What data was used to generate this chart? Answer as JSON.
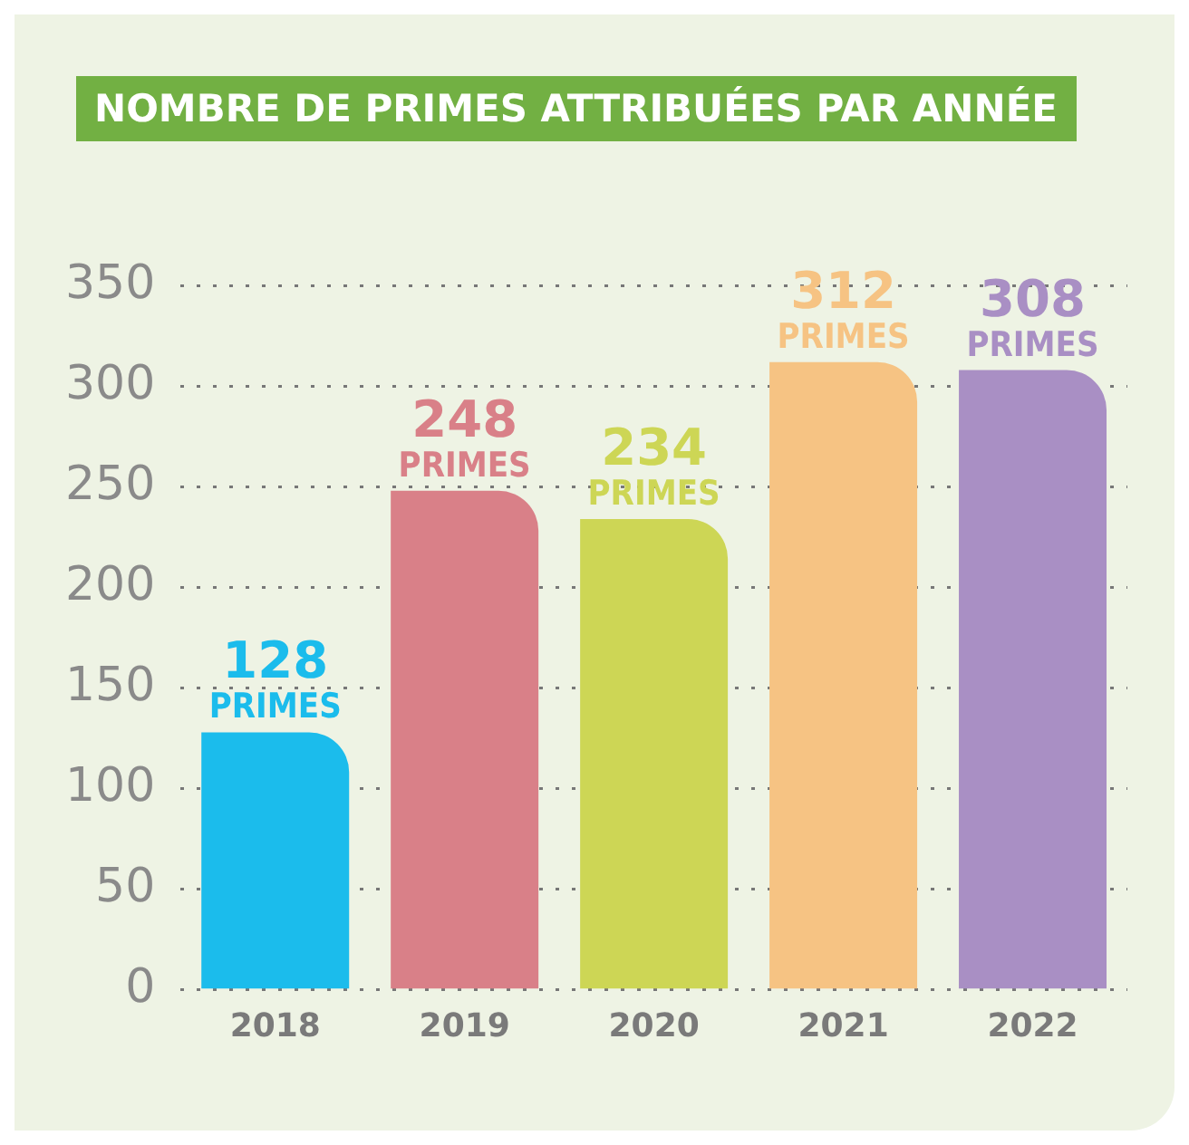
{
  "chart_data": {
    "type": "bar",
    "title": "NOMBRE DE PRIMES ATTRIBUÉES PAR ANNÉE",
    "categories": [
      "2018",
      "2019",
      "2020",
      "2021",
      "2022"
    ],
    "values": [
      128,
      248,
      234,
      312,
      308
    ],
    "colors": [
      "#1bbcec",
      "#d98088",
      "#cdd655",
      "#f6c383",
      "#a98fc4"
    ],
    "value_labels": [
      "128 PRIMES",
      "248 PRIMES",
      "234 PRIMES",
      "312 PRIMES",
      "308 PRIMES"
    ],
    "ylim": [
      0,
      350
    ],
    "yticks": [
      0,
      50,
      100,
      150,
      200,
      250,
      300,
      350
    ],
    "grid": "y",
    "legend": false
  }
}
